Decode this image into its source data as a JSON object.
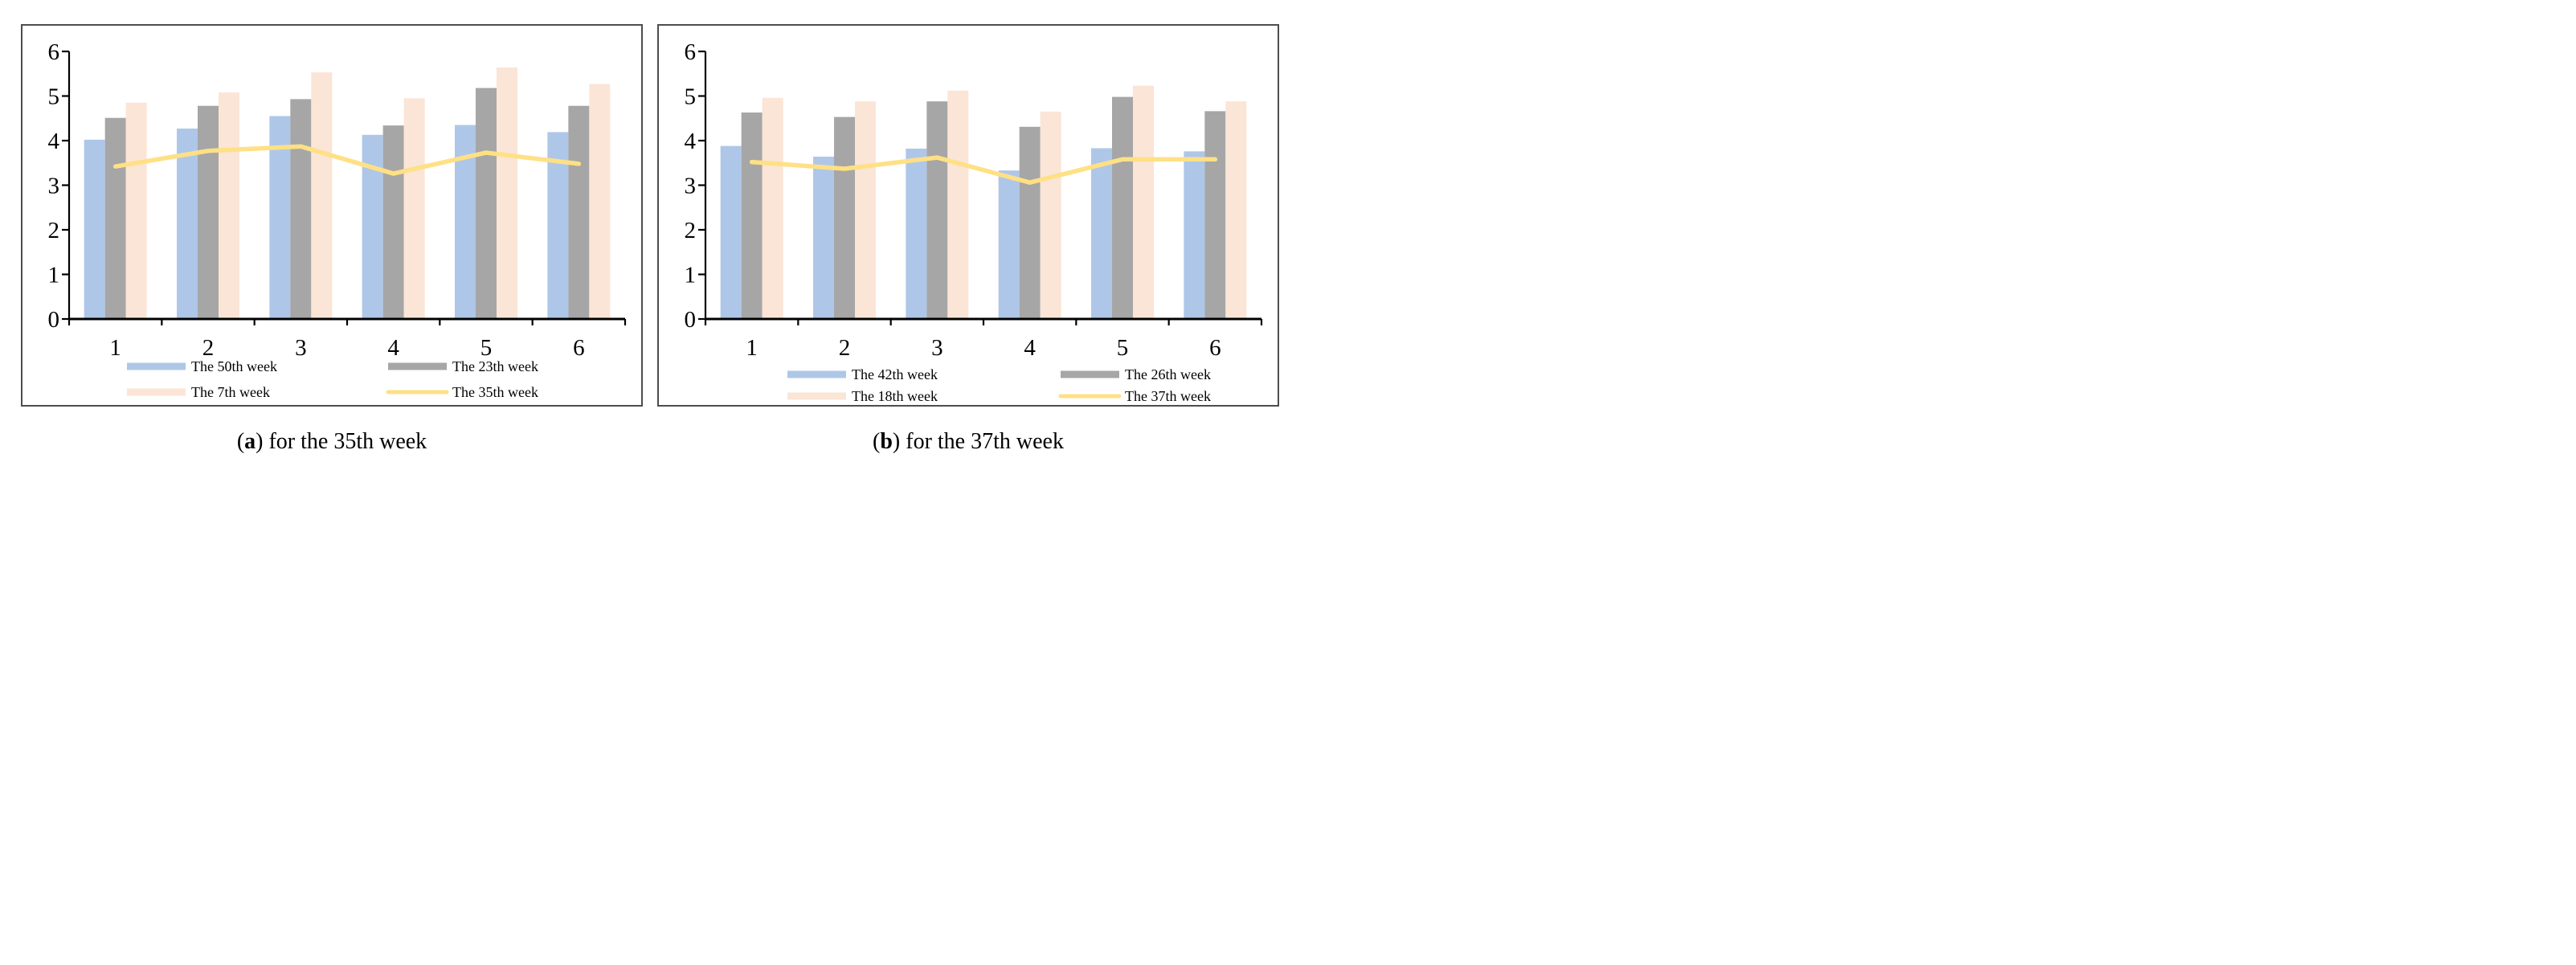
{
  "figure": {
    "background": "#ffffff",
    "panel_border_color": "#4d4d4d",
    "axis_color": "#000000",
    "text_color": "#000000"
  },
  "chart_data": [
    {
      "type": "bar",
      "subtype": "grouped-bars-with-line-overlay",
      "categories": [
        "1",
        "2",
        "3",
        "4",
        "5",
        "6"
      ],
      "series": [
        {
          "name": "The 50th week",
          "kind": "bar",
          "color": "#AEC7E8",
          "values": [
            4.02,
            4.27,
            4.55,
            4.13,
            4.35,
            4.19
          ]
        },
        {
          "name": "The 23th week",
          "kind": "bar",
          "color": "#A6A6A6",
          "values": [
            4.51,
            4.78,
            4.93,
            4.34,
            5.18,
            4.78
          ]
        },
        {
          "name": "The 7th week",
          "kind": "bar",
          "color": "#FBE5D6",
          "values": [
            4.85,
            5.08,
            5.53,
            4.95,
            5.64,
            5.27
          ]
        },
        {
          "name": "The 35th week",
          "kind": "line",
          "color": "#FFE085",
          "values": [
            3.42,
            3.77,
            3.87,
            3.26,
            3.73,
            3.48
          ]
        }
      ],
      "ylim": [
        0,
        6
      ],
      "yticks": [
        "0",
        "1",
        "2",
        "3",
        "4",
        "5",
        "6"
      ],
      "grid": false,
      "legend_position": "bottom",
      "caption": {
        "prefix": "(",
        "letter": "a",
        "suffix": ") for the 35th week"
      }
    },
    {
      "type": "bar",
      "subtype": "grouped-bars-with-line-overlay",
      "categories": [
        "1",
        "2",
        "3",
        "4",
        "5",
        "6"
      ],
      "series": [
        {
          "name": "The 42th week",
          "kind": "bar",
          "color": "#AEC7E8",
          "values": [
            3.88,
            3.64,
            3.82,
            3.33,
            3.83,
            3.76
          ]
        },
        {
          "name": "The 26th week",
          "kind": "bar",
          "color": "#A6A6A6",
          "values": [
            4.63,
            4.53,
            4.88,
            4.31,
            4.98,
            4.66
          ]
        },
        {
          "name": "The 18th week",
          "kind": "bar",
          "color": "#FBE5D6",
          "values": [
            4.96,
            4.88,
            5.12,
            4.65,
            5.23,
            4.88
          ]
        },
        {
          "name": "The 37th week",
          "kind": "line",
          "color": "#FFE085",
          "values": [
            3.52,
            3.37,
            3.62,
            3.06,
            3.58,
            3.58
          ]
        }
      ],
      "ylim": [
        0,
        6
      ],
      "yticks": [
        "0",
        "1",
        "2",
        "3",
        "4",
        "5",
        "6"
      ],
      "grid": false,
      "legend_position": "bottom",
      "caption": {
        "prefix": "(",
        "letter": "b",
        "suffix": ") for the 37th week"
      }
    }
  ]
}
